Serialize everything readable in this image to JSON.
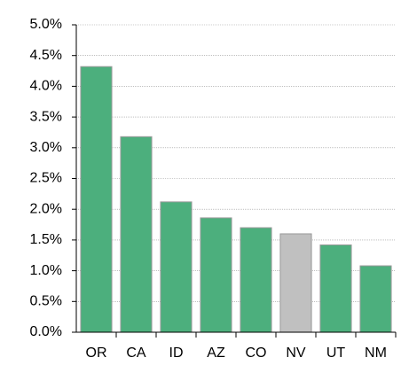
{
  "chart_data": {
    "type": "bar",
    "categories": [
      "OR",
      "CA",
      "ID",
      "AZ",
      "CO",
      "NV",
      "UT",
      "NM"
    ],
    "values": [
      4.32,
      3.18,
      2.12,
      1.86,
      1.7,
      1.6,
      1.42,
      1.08
    ],
    "colors": [
      "#4caf7d",
      "#4caf7d",
      "#4caf7d",
      "#4caf7d",
      "#4caf7d",
      "#c0c0c0",
      "#4caf7d",
      "#4caf7d"
    ],
    "ylim": [
      0,
      5
    ],
    "yticks": [
      {
        "value": 0,
        "label": "0.0%"
      },
      {
        "value": 0.5,
        "label": "0.5%"
      },
      {
        "value": 1,
        "label": "1.0%"
      },
      {
        "value": 1.5,
        "label": "1.5%"
      },
      {
        "value": 2,
        "label": "2.0%"
      },
      {
        "value": 2.5,
        "label": "2.5%"
      },
      {
        "value": 3,
        "label": "3.0%"
      },
      {
        "value": 3.5,
        "label": "3.5%"
      },
      {
        "value": 4,
        "label": "4.0%"
      },
      {
        "value": 4.5,
        "label": "4.5%"
      },
      {
        "value": 5,
        "label": "5.0%"
      }
    ],
    "grid": true
  }
}
